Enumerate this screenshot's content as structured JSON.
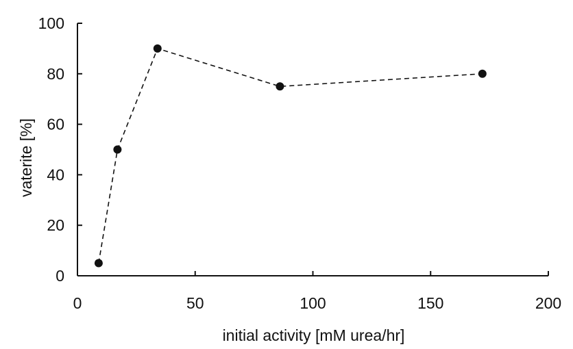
{
  "chart_data": {
    "type": "scatter",
    "title": "",
    "xlabel": "initial activity [mM urea/hr]",
    "ylabel": "vaterite [%]",
    "xlim": [
      0,
      200
    ],
    "ylim": [
      0,
      100
    ],
    "x_ticks": [
      0,
      50,
      100,
      150,
      200
    ],
    "y_ticks": [
      0,
      20,
      40,
      60,
      80,
      100
    ],
    "grid": false,
    "legend": "none",
    "line_style": "dashed",
    "series": [
      {
        "x": [
          9,
          17,
          34,
          86,
          172
        ],
        "y": [
          5,
          50,
          90,
          75,
          80
        ]
      }
    ],
    "colors": {
      "marker": "#111111",
      "line": "#111111",
      "axis": "#111111"
    }
  }
}
